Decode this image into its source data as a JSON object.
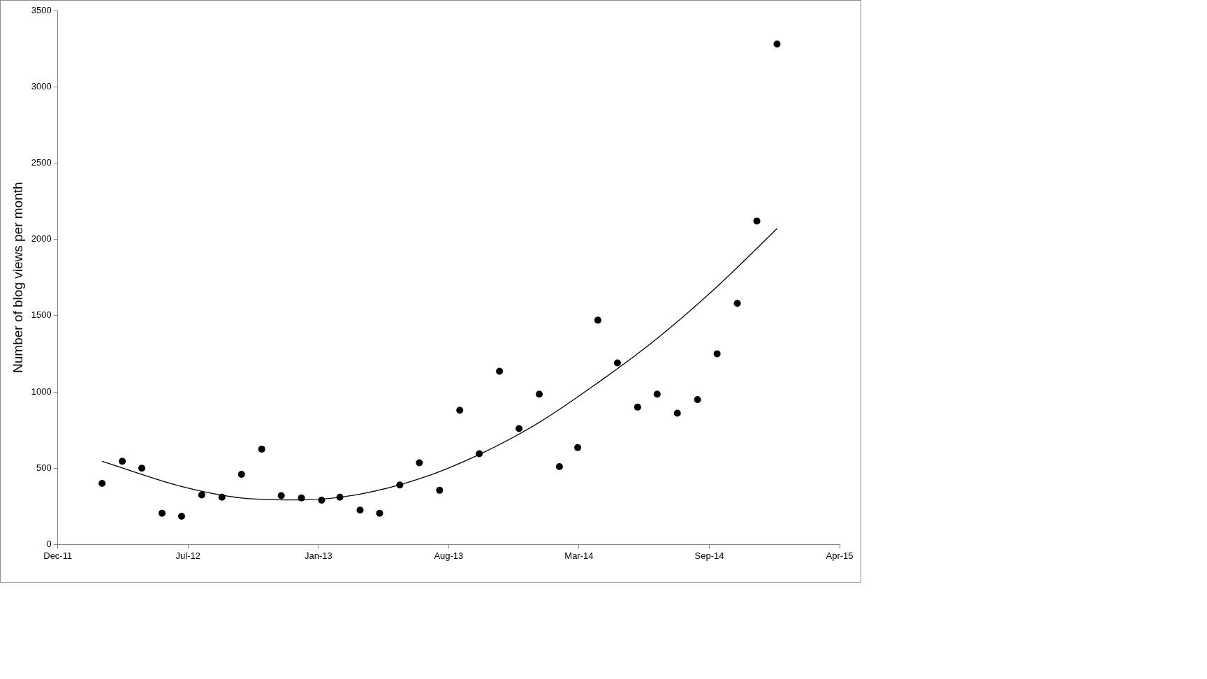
{
  "chart_data": {
    "type": "scatter",
    "ylabel": "Number of blog views per month",
    "xlim": [
      "2011-12-23",
      "2015-04-06"
    ],
    "xticks": [
      {
        "value": "2011-12-23",
        "label": "Dec-11"
      },
      {
        "value": "2012-07-10",
        "label": "Jul-12"
      },
      {
        "value": "2013-01-26",
        "label": "Jan-13"
      },
      {
        "value": "2013-08-14",
        "label": "Aug-13"
      },
      {
        "value": "2014-03-02",
        "label": "Mar-14"
      },
      {
        "value": "2014-09-18",
        "label": "Sep-14"
      },
      {
        "value": "2015-04-06",
        "label": "Apr-15"
      }
    ],
    "ylim": [
      0,
      3500
    ],
    "yticks": [
      0,
      500,
      1000,
      1500,
      2000,
      2500,
      3000,
      3500
    ],
    "grid": false,
    "legend": false,
    "marker": "circle",
    "series": [
      {
        "type": "scatter",
        "color": "#000000",
        "x": [
          "2012-02-29",
          "2012-03-31",
          "2012-04-30",
          "2012-05-31",
          "2012-06-30",
          "2012-07-31",
          "2012-08-31",
          "2012-09-30",
          "2012-10-31",
          "2012-11-30",
          "2012-12-31",
          "2013-01-31",
          "2013-02-28",
          "2013-03-31",
          "2013-04-30",
          "2013-05-31",
          "2013-06-30",
          "2013-07-31",
          "2013-08-31",
          "2013-09-30",
          "2013-10-31",
          "2013-11-30",
          "2013-12-31",
          "2014-01-31",
          "2014-02-28",
          "2014-03-31",
          "2014-04-30",
          "2014-05-31",
          "2014-06-30",
          "2014-07-31",
          "2014-08-31",
          "2014-09-30",
          "2014-10-31",
          "2014-11-30",
          "2014-12-31"
        ],
        "values": [
          400,
          545,
          500,
          205,
          185,
          325,
          310,
          460,
          625,
          320,
          305,
          290,
          310,
          225,
          205,
          390,
          535,
          355,
          880,
          595,
          1135,
          760,
          985,
          510,
          635,
          1470,
          1190,
          900,
          985,
          860,
          950,
          1250,
          1580,
          2120,
          3280
        ]
      },
      {
        "type": "line",
        "color": "#000000",
        "marker": "none",
        "x": [
          "2012-02-29",
          "2012-06-30",
          "2012-09-30",
          "2012-12-31",
          "2013-03-31",
          "2013-06-30",
          "2013-09-30",
          "2013-12-31",
          "2014-03-31",
          "2014-06-30",
          "2014-09-30",
          "2014-12-31"
        ],
        "values": [
          545,
          380,
          305,
          292,
          330,
          430,
          590,
          800,
          1060,
          1350,
          1690,
          2070
        ]
      }
    ]
  }
}
